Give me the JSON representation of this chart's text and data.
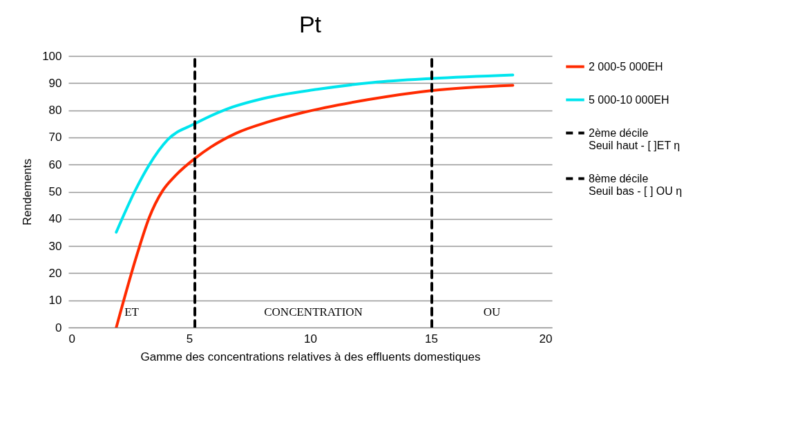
{
  "chart_data": {
    "type": "line",
    "title": "Pt",
    "xlabel": "Gamme des concentrations relatives à des effluents domestiques",
    "ylabel": "Rendements",
    "xlim": [
      0,
      20
    ],
    "xticks": [
      0,
      5,
      10,
      15,
      20
    ],
    "ylim": [
      0,
      100
    ],
    "yticks": [
      0,
      10,
      20,
      30,
      40,
      50,
      60,
      70,
      80,
      90,
      100
    ],
    "grid": "y",
    "legend": "right",
    "series": [
      {
        "name": "2 000-5 000EH",
        "color": "#ff2a00",
        "line_style": "solid",
        "x": [
          1.98,
          2.86,
          3.33,
          3.9,
          4.38,
          5.24,
          5.9,
          6.95,
          8.29,
          9.71,
          12.38,
          15.05,
          18.38
        ],
        "values": [
          0,
          27.5,
          40.2,
          50.4,
          55.5,
          62.3,
          66.5,
          71.6,
          75.8,
          79.2,
          83.9,
          87.3,
          89.2
        ]
      },
      {
        "name": "5 000-10 000EH",
        "color": "#00e5ee",
        "line_style": "solid",
        "x": [
          1.98,
          2.76,
          3.33,
          4.1,
          5.24,
          6.48,
          8.1,
          10.29,
          12.57,
          15.05,
          18.38
        ],
        "values": [
          35.1,
          50.4,
          59.7,
          69.1,
          75.1,
          80.2,
          84.4,
          87.7,
          90.2,
          91.7,
          93.0
        ]
      },
      {
        "name": "2ème décile\nSeuil haut - [ ]ET η",
        "color": "#000000",
        "line_style": "dashed",
        "x": [
          5.23,
          5.23
        ],
        "values": [
          0,
          100
        ]
      },
      {
        "name": "8ème décile\nSeuil bas - [ ] OU η",
        "color": "#000000",
        "line_style": "dashed",
        "x": [
          15.03,
          15.03
        ],
        "values": [
          0,
          100
        ]
      }
    ],
    "annotations": [
      "ET",
      "CONCENTRATION",
      "OU"
    ]
  }
}
